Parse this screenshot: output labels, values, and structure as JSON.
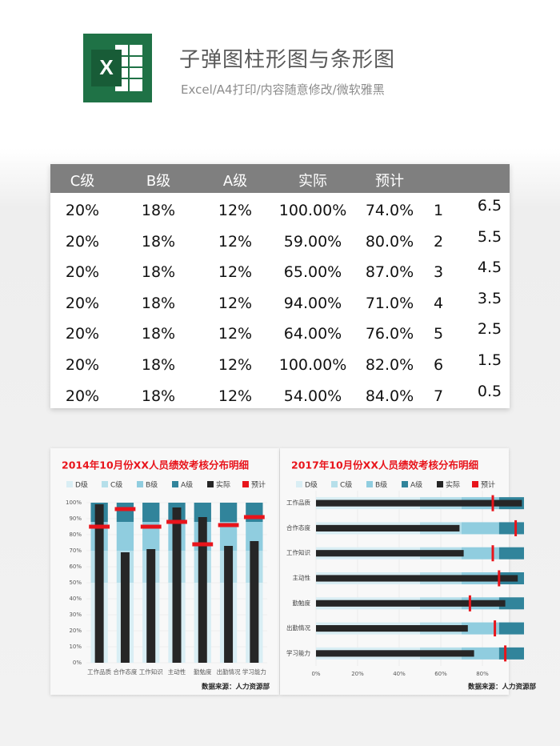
{
  "header": {
    "title": "子弹图柱形图与条形图",
    "subtitle": "Excel/A4打印/内容随意修改/微软雅黑",
    "icon_letter": "X"
  },
  "table": {
    "columns": [
      "C级",
      "B级",
      "A级",
      "实际",
      "预计"
    ],
    "rows": [
      [
        "20%",
        "18%",
        "12%",
        "100.00%",
        "74.0%",
        "1",
        "6.5"
      ],
      [
        "20%",
        "18%",
        "12%",
        "59.00%",
        "80.0%",
        "2",
        "5.5"
      ],
      [
        "20%",
        "18%",
        "12%",
        "65.00%",
        "87.0%",
        "3",
        "4.5"
      ],
      [
        "20%",
        "18%",
        "12%",
        "94.00%",
        "71.0%",
        "4",
        "3.5"
      ],
      [
        "20%",
        "18%",
        "12%",
        "64.00%",
        "76.0%",
        "5",
        "2.5"
      ],
      [
        "20%",
        "18%",
        "12%",
        "100.00%",
        "82.0%",
        "6",
        "1.5"
      ],
      [
        "20%",
        "18%",
        "12%",
        "54.00%",
        "84.0%",
        "7",
        "0.5"
      ]
    ]
  },
  "chart_data": [
    {
      "type": "bullet-column",
      "title": "2014年10月份XX人员绩效考核分布明细",
      "source": "数据来源：人力资源部",
      "categories": [
        "工作品质",
        "合作态度",
        "工作知识",
        "主动性",
        "勤勉度",
        "出勤情况",
        "学习能力"
      ],
      "series": [
        {
          "name": "D级",
          "color": "#d9eef4",
          "values": [
            50,
            50,
            50,
            50,
            50,
            50,
            50
          ]
        },
        {
          "name": "C级",
          "color": "#b6dfea",
          "values": [
            20,
            20,
            20,
            20,
            20,
            20,
            20
          ]
        },
        {
          "name": "B级",
          "color": "#90cddf",
          "values": [
            18,
            18,
            18,
            18,
            18,
            18,
            18
          ]
        },
        {
          "name": "A级",
          "color": "#31849b",
          "values": [
            12,
            12,
            12,
            12,
            12,
            12,
            12
          ]
        },
        {
          "name": "实际",
          "color": "#262626",
          "values": [
            99,
            69,
            71,
            97,
            91,
            73,
            76
          ]
        },
        {
          "name": "预计",
          "color": "#e8141b",
          "values": [
            85,
            96,
            85,
            88,
            74,
            86,
            91
          ]
        }
      ],
      "ylim": [
        0,
        100
      ],
      "yticks": [
        {
          "value": 0,
          "label": "0%"
        },
        {
          "value": 10,
          "label": "10%"
        },
        {
          "value": 20,
          "label": "20%"
        },
        {
          "value": 30,
          "label": "30%"
        },
        {
          "value": 40,
          "label": "40%"
        },
        {
          "value": 50,
          "label": "50%"
        },
        {
          "value": 60,
          "label": "60%"
        },
        {
          "value": 70,
          "label": "70%"
        },
        {
          "value": 80,
          "label": "80%"
        },
        {
          "value": 90,
          "label": "90%"
        },
        {
          "value": 100,
          "label": "100%"
        }
      ],
      "grid": true,
      "legend": "top"
    },
    {
      "type": "bullet-bar",
      "title": "2017年10月份XX人员绩效考核分布明细",
      "source": "数据来源：人力资源部",
      "categories": [
        "工作品质",
        "合作态度",
        "工作知识",
        "主动性",
        "勤勉度",
        "出勤情况",
        "学习能力"
      ],
      "series": [
        {
          "name": "D级",
          "color": "#d9eef4",
          "values": [
            50,
            50,
            50,
            50,
            50,
            50,
            50
          ]
        },
        {
          "name": "C级",
          "color": "#b6dfea",
          "values": [
            20,
            20,
            20,
            20,
            20,
            20,
            20
          ]
        },
        {
          "name": "B级",
          "color": "#90cddf",
          "values": [
            18,
            18,
            18,
            18,
            18,
            18,
            18
          ]
        },
        {
          "name": "A级",
          "color": "#31849b",
          "values": [
            12,
            12,
            12,
            12,
            12,
            12,
            12
          ]
        },
        {
          "name": "实际",
          "color": "#262626",
          "values": [
            99,
            69,
            71,
            97,
            91,
            73,
            76
          ]
        },
        {
          "name": "预计",
          "color": "#e8141b",
          "values": [
            85,
            96,
            85,
            88,
            74,
            86,
            91
          ]
        }
      ],
      "xlim": [
        0,
        100
      ],
      "xticks": [
        {
          "value": 0,
          "label": "0%"
        },
        {
          "value": 20,
          "label": "20%"
        },
        {
          "value": 40,
          "label": "40%"
        },
        {
          "value": 60,
          "label": "60%"
        },
        {
          "value": 80,
          "label": "80%"
        }
      ],
      "grid": true,
      "legend": "top"
    }
  ]
}
